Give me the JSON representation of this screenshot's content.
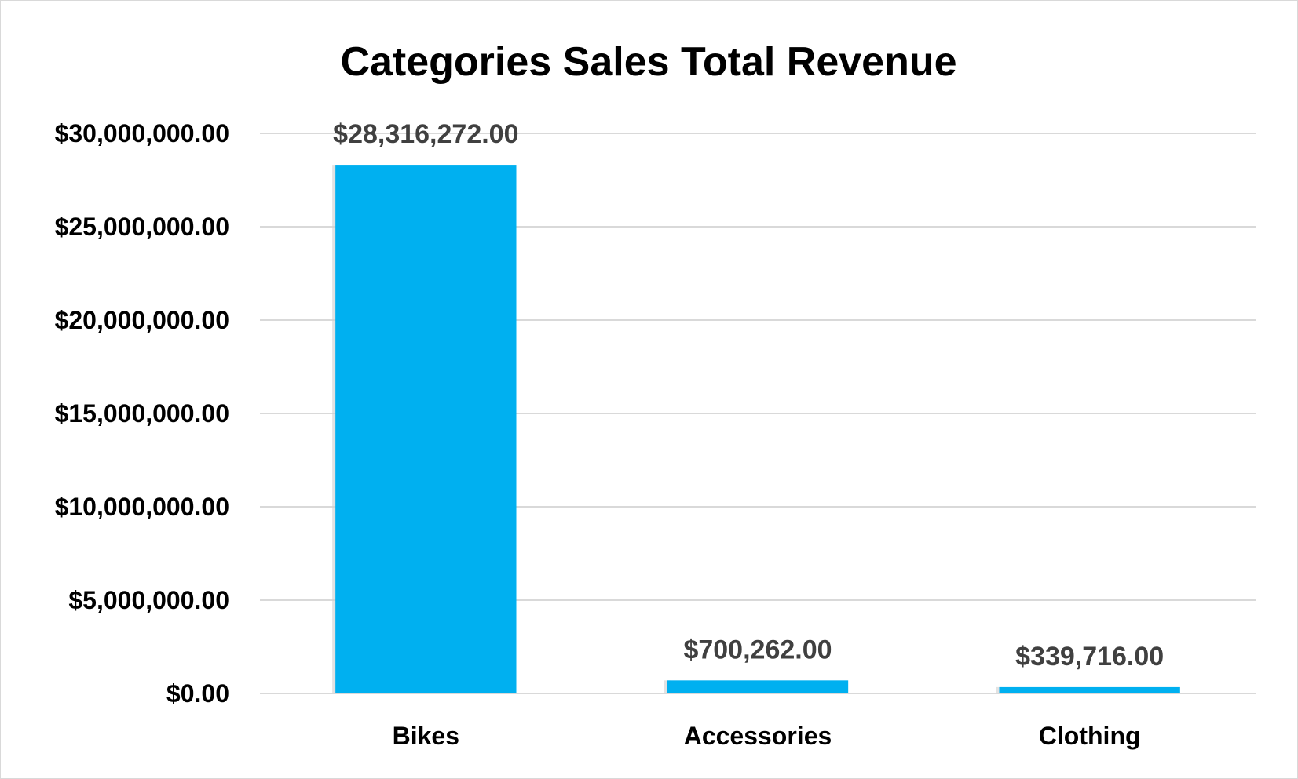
{
  "chart_data": {
    "type": "bar",
    "title": "Categories Sales Total Revenue",
    "categories": [
      "Bikes",
      "Accessories",
      "Clothing"
    ],
    "values": [
      28316272.0,
      700262.0,
      339716.0
    ],
    "data_labels": [
      "$28,316,272.00",
      "$700,262.00",
      "$339,716.00"
    ],
    "ylim": [
      0,
      30000000
    ],
    "yticks": [
      0,
      5000000,
      10000000,
      15000000,
      20000000,
      25000000,
      30000000
    ],
    "ytick_labels": [
      "$0.00",
      "$5,000,000.00",
      "$10,000,000.00",
      "$15,000,000.00",
      "$20,000,000.00",
      "$25,000,000.00",
      "$30,000,000.00"
    ],
    "xlabel": "",
    "ylabel": "",
    "grid": true,
    "legend": "none",
    "bar_color": "#00B0F0"
  }
}
